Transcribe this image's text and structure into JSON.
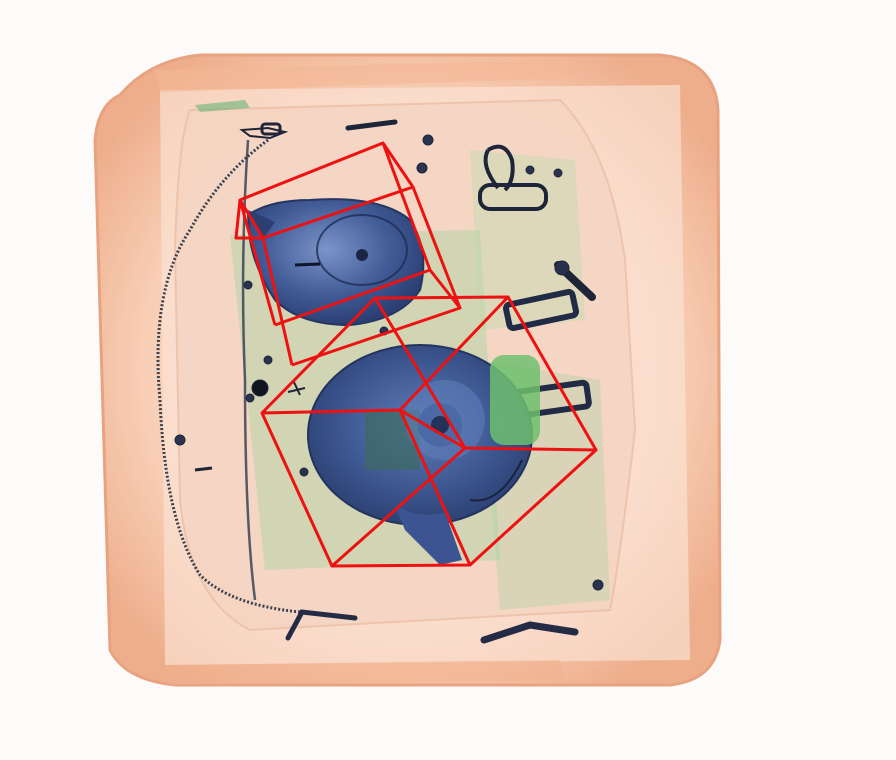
{
  "image": {
    "kind": "x-ray baggage scan",
    "colors": {
      "background": "#fdfbfa",
      "tray": "#f7c7aa",
      "tray_edge": "#e9a783",
      "bag": "#f2c9b2",
      "organic_green": "#7cc28a",
      "metal_blue": "#3f5a93",
      "dark_metal": "#1f2a44",
      "box_red": "#ee1111"
    }
  },
  "annotations": {
    "boxes_count": 2,
    "box_color": "#ee1111"
  }
}
